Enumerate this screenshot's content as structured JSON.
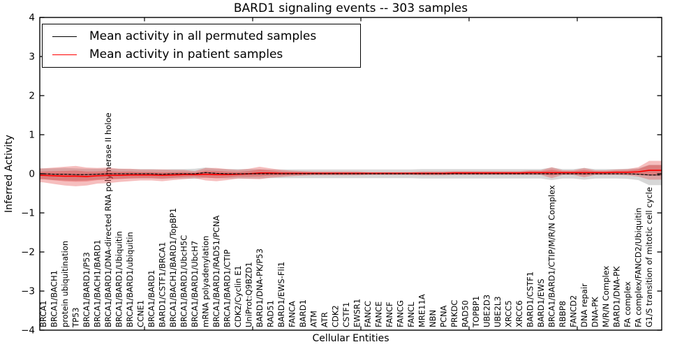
{
  "title": "BARD1 signaling events -- 303 samples",
  "axes": {
    "xlabel": "Cellular Entities",
    "ylabel": "Inferred Activity",
    "ytick_labels": [
      "4",
      "3",
      "2",
      "1",
      "0",
      "−1",
      "−2",
      "−3",
      "−4"
    ],
    "ytick_values": [
      4,
      3,
      2,
      1,
      0,
      -1,
      -2,
      -3,
      -4
    ]
  },
  "legend": {
    "entries": [
      {
        "label": "Mean activity in all permuted samples",
        "color": "#000000"
      },
      {
        "label": "Mean activity in patient samples",
        "color": "#ff0000"
      }
    ]
  },
  "colors": {
    "permuted_line": "#000000",
    "patient_line": "#ff0000",
    "permuted_band": "rgba(110,110,110,0.28)",
    "patient_band": "rgba(225,40,40,0.30)",
    "axis": "#000000"
  },
  "chart_data": {
    "type": "line",
    "title": "BARD1 signaling events -- 303 samples",
    "xlabel": "Cellular Entities",
    "ylabel": "Inferred Activity",
    "ylim": [
      -4,
      4
    ],
    "grid": false,
    "legend_position": "upper left",
    "note": "Both series hover near 0; shaded bands show approximate +/- spread read from the figure.",
    "categories": [
      "BRCA1",
      "BRCA1/BACH1",
      "protein ubiquitination",
      "TP53",
      "BRCA1/BARD1/P53",
      "BRCA1/BACH1/BARD1",
      "BRCA1/BARD1/DNA-directed RNA polymerase II holoe",
      "BRCA1/BARD1/Ubiquitin",
      "BRCA1/BARD1/ubiquitin",
      "CCNE1",
      "BRCA1/BARD1",
      "BARD1/CSTF1/BRCA1",
      "BRCA1/BACH1/BARD1/TopBP1",
      "BRCA1/BARD1/UbcH5C",
      "BRCA1/BARD1/UbcH7",
      "mRNA polyadenylation",
      "BRCA1/BARD1/RAD51/PCNA",
      "BRCA1/BARD1/CTIP",
      "CDK2/Cyclin E1",
      "UniProt:Q9BZD1",
      "BARD1/DNA-PK/P53",
      "RAD51",
      "BARD1/EWS-Fli1",
      "FANCA",
      "BARD1",
      "ATM",
      "ATR",
      "CDK2",
      "CSTF1",
      "EWSR1",
      "FANCC",
      "FANCE",
      "FANCF",
      "FANCG",
      "FANCL",
      "MRE11A",
      "NBN",
      "PCNA",
      "PRKDC",
      "RAD50",
      "TOPBP1",
      "UBE2D3",
      "UBE2L3",
      "XRCC5",
      "XRCC6",
      "BARD1/CSTF1",
      "BARD1/EWS",
      "BRCA1/BARD1/CTIP/M/R/N Complex",
      "RBBP8",
      "FANCD2",
      "DNA repair",
      "DNA-PK",
      "M/R/N Complex",
      "BARD1/DNA-PK",
      "FA complex",
      "FA complex/FANCD2/Ubiquitin",
      "G1/S transition of mitotic cell cycle"
    ],
    "series": [
      {
        "name": "Mean activity in all permuted samples",
        "color": "#000000",
        "values": [
          0.0,
          -0.01,
          -0.01,
          -0.02,
          -0.02,
          -0.01,
          0.0,
          0.0,
          0.0,
          0.0,
          0.0,
          -0.01,
          0.0,
          0.0,
          0.0,
          0.03,
          0.01,
          0.0,
          0.0,
          0.0,
          0.0,
          0.0,
          0.0,
          0.0,
          0.0,
          0.0,
          0.0,
          0.0,
          0.0,
          0.0,
          0.0,
          0.0,
          0.0,
          0.0,
          0.0,
          0.0,
          0.0,
          0.0,
          0.0,
          0.0,
          0.0,
          0.0,
          0.0,
          0.0,
          0.0,
          0.0,
          0.0,
          0.0,
          0.0,
          0.0,
          0.0,
          0.0,
          0.0,
          0.0,
          0.0,
          -0.01,
          -0.03
        ],
        "band_halfwidth": [
          0.14,
          0.15,
          0.16,
          0.16,
          0.15,
          0.14,
          0.13,
          0.13,
          0.12,
          0.12,
          0.12,
          0.12,
          0.12,
          0.12,
          0.13,
          0.13,
          0.12,
          0.12,
          0.12,
          0.12,
          0.12,
          0.11,
          0.11,
          0.11,
          0.11,
          0.11,
          0.11,
          0.11,
          0.11,
          0.11,
          0.11,
          0.11,
          0.11,
          0.11,
          0.11,
          0.12,
          0.12,
          0.12,
          0.12,
          0.12,
          0.12,
          0.12,
          0.12,
          0.12,
          0.12,
          0.12,
          0.12,
          0.16,
          0.12,
          0.12,
          0.15,
          0.12,
          0.12,
          0.12,
          0.13,
          0.15,
          0.26
        ]
      },
      {
        "name": "Mean activity in patient samples",
        "color": "#ff0000",
        "values": [
          -0.04,
          -0.05,
          -0.06,
          -0.06,
          -0.07,
          -0.05,
          -0.04,
          -0.04,
          -0.03,
          -0.03,
          -0.03,
          -0.04,
          -0.03,
          -0.02,
          -0.02,
          -0.01,
          -0.02,
          -0.02,
          -0.01,
          0.0,
          0.02,
          0.02,
          0.01,
          0.01,
          0.01,
          0.01,
          0.01,
          0.01,
          0.01,
          0.01,
          0.01,
          0.01,
          0.01,
          0.01,
          0.01,
          0.01,
          0.01,
          0.01,
          0.02,
          0.02,
          0.02,
          0.02,
          0.02,
          0.02,
          0.02,
          0.03,
          0.03,
          0.03,
          0.03,
          0.03,
          0.03,
          0.03,
          0.03,
          0.04,
          0.04,
          0.05,
          0.09
        ],
        "band_halfwidth": [
          0.18,
          0.21,
          0.24,
          0.26,
          0.23,
          0.2,
          0.2,
          0.17,
          0.16,
          0.14,
          0.14,
          0.15,
          0.13,
          0.12,
          0.09,
          0.16,
          0.17,
          0.14,
          0.11,
          0.13,
          0.16,
          0.12,
          0.09,
          0.07,
          0.06,
          0.05,
          0.05,
          0.05,
          0.05,
          0.05,
          0.04,
          0.04,
          0.04,
          0.04,
          0.04,
          0.05,
          0.05,
          0.05,
          0.05,
          0.05,
          0.05,
          0.05,
          0.05,
          0.05,
          0.05,
          0.06,
          0.06,
          0.14,
          0.06,
          0.06,
          0.12,
          0.06,
          0.06,
          0.07,
          0.08,
          0.12,
          0.24
        ]
      }
    ]
  }
}
